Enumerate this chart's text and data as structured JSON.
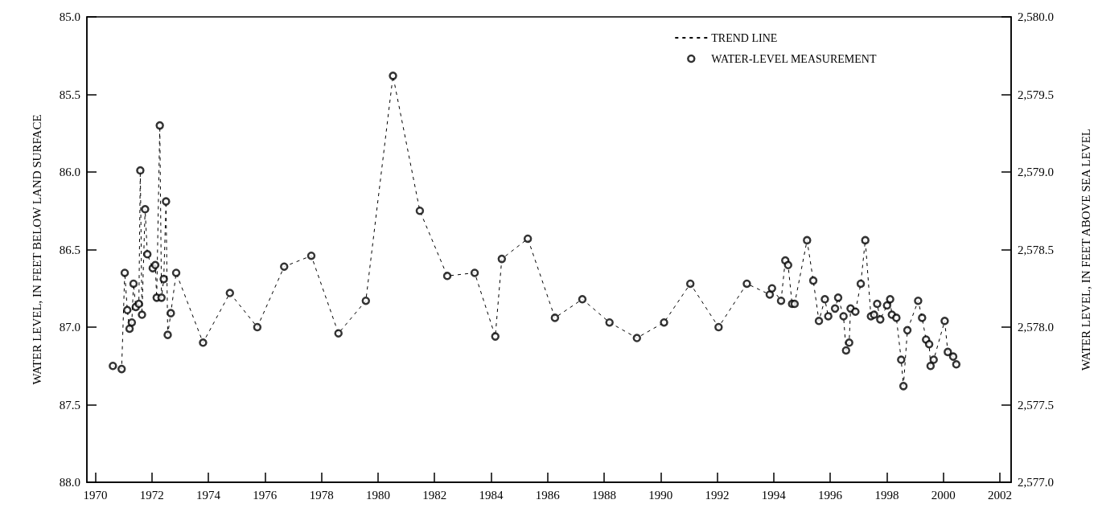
{
  "chart_data": {
    "type": "line",
    "ylabel": "WATER LEVEL, IN FEET BELOW LAND SURFACE",
    "y2label": "WATER LEVEL, IN FEET ABOVE SEA LEVEL",
    "x": [
      1970.62,
      1970.93,
      1971.04,
      1971.13,
      1971.21,
      1971.29,
      1971.35,
      1971.43,
      1971.54,
      1971.59,
      1971.65,
      1971.76,
      1971.84,
      1972.03,
      1972.12,
      1972.17,
      1972.28,
      1972.34,
      1972.42,
      1972.5,
      1972.56,
      1972.67,
      1972.86,
      1973.81,
      1974.76,
      1975.73,
      1976.68,
      1977.64,
      1978.6,
      1979.57,
      1980.53,
      1981.48,
      1982.45,
      1983.42,
      1984.15,
      1984.38,
      1985.3,
      1986.26,
      1987.23,
      1988.19,
      1989.16,
      1990.12,
      1991.05,
      1992.05,
      1993.05,
      1993.86,
      1993.94,
      1994.26,
      1994.41,
      1994.51,
      1994.65,
      1994.74,
      1995.18,
      1995.4,
      1995.6,
      1995.81,
      1995.93,
      1996.17,
      1996.28,
      1996.47,
      1996.56,
      1996.67,
      1996.72,
      1996.89,
      1997.08,
      1997.24,
      1997.44,
      1997.55,
      1997.66,
      1997.77,
      1998.01,
      1998.12,
      1998.18,
      1998.34,
      1998.51,
      1998.59,
      1998.73,
      1999.11,
      1999.25,
      1999.39,
      1999.5,
      1999.55,
      1999.66,
      2000.05,
      2000.16,
      2000.35,
      2000.46
    ],
    "series": [
      {
        "name": "TREND LINE",
        "color": "#000000",
        "marker": "none",
        "line_style": "dashed",
        "values": [
          87.25,
          87.27,
          86.65,
          86.89,
          87.01,
          86.97,
          86.72,
          86.87,
          86.85,
          85.99,
          86.92,
          86.24,
          86.53,
          86.62,
          86.6,
          86.81,
          85.7,
          86.81,
          86.69,
          86.19,
          87.05,
          86.91,
          86.65,
          87.1,
          86.78,
          87.0,
          86.61,
          86.54,
          87.04,
          86.83,
          85.38,
          86.25,
          86.67,
          86.65,
          87.06,
          86.56,
          86.43,
          86.94,
          86.82,
          86.97,
          87.07,
          86.97,
          86.72,
          87.0,
          86.72,
          86.79,
          86.75,
          86.83,
          86.57,
          86.6,
          86.85,
          86.85,
          86.44,
          86.7,
          86.96,
          86.82,
          86.93,
          86.88,
          86.81,
          86.93,
          87.15,
          87.1,
          86.88,
          86.9,
          86.72,
          86.44,
          86.93,
          86.92,
          86.85,
          86.95,
          86.86,
          86.82,
          86.92,
          86.94,
          87.21,
          87.38,
          87.02,
          86.83,
          86.94,
          87.08,
          87.11,
          87.25,
          87.21,
          86.96,
          87.16,
          87.19,
          87.24
        ]
      },
      {
        "name": "WATER-LEVEL MEASUREMENT",
        "type": "scatter",
        "color": "#000000",
        "marker": "circle",
        "values": [
          87.25,
          87.27,
          86.65,
          86.89,
          87.01,
          86.97,
          86.72,
          86.87,
          86.85,
          85.99,
          86.92,
          86.24,
          86.53,
          86.62,
          86.6,
          86.81,
          85.7,
          86.81,
          86.69,
          86.19,
          87.05,
          86.91,
          86.65,
          87.1,
          86.78,
          87.0,
          86.61,
          86.54,
          87.04,
          86.83,
          85.38,
          86.25,
          86.67,
          86.65,
          87.06,
          86.56,
          86.43,
          86.94,
          86.82,
          86.97,
          87.07,
          86.97,
          86.72,
          87.0,
          86.72,
          86.79,
          86.75,
          86.83,
          86.57,
          86.6,
          86.85,
          86.85,
          86.44,
          86.7,
          86.96,
          86.82,
          86.93,
          86.88,
          86.81,
          86.93,
          87.15,
          87.1,
          86.88,
          86.9,
          86.72,
          86.44,
          86.93,
          86.92,
          86.85,
          86.95,
          86.86,
          86.82,
          86.92,
          86.94,
          87.21,
          87.38,
          87.02,
          86.83,
          86.94,
          87.08,
          87.11,
          87.25,
          87.21,
          86.96,
          87.16,
          87.19,
          87.24
        ]
      }
    ],
    "xlim": [
      1969.7,
      2002.4
    ],
    "xticks": [
      1970,
      1972,
      1974,
      1976,
      1978,
      1980,
      1982,
      1984,
      1986,
      1988,
      1990,
      1992,
      1994,
      1996,
      1998,
      2000,
      2002
    ],
    "ylim": [
      88.0,
      85.0
    ],
    "yticks": [
      {
        "value": 85,
        "label": "85.0"
      },
      {
        "value": 85.5,
        "label": "85.5"
      },
      {
        "value": 86,
        "label": "86.0"
      },
      {
        "value": 86.5,
        "label": "86.5"
      },
      {
        "value": 87,
        "label": "87.0"
      },
      {
        "value": 87.5,
        "label": "87.5"
      },
      {
        "value": 88,
        "label": "88.0"
      }
    ],
    "y2lim": [
      2577.0,
      2580.0
    ],
    "y2ticks": [
      {
        "value": 2577,
        "label": "2,577.0"
      },
      {
        "value": 2577.5,
        "label": "2,577.5"
      },
      {
        "value": 2578,
        "label": "2,578.0"
      },
      {
        "value": 2578.5,
        "label": "2,578.5"
      },
      {
        "value": 2579,
        "label": "2,579.0"
      },
      {
        "value": 2579.5,
        "label": "2,579.5"
      },
      {
        "value": 2580,
        "label": "2,580.0"
      }
    ],
    "grid": false,
    "legend": "top right"
  }
}
